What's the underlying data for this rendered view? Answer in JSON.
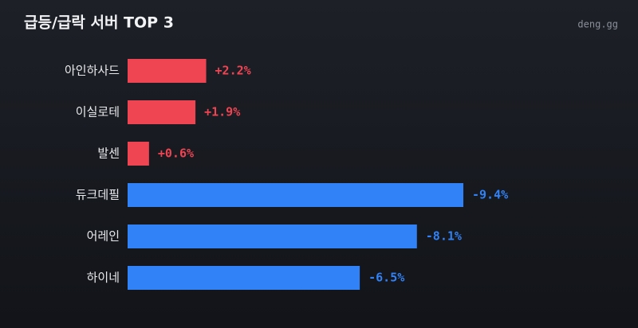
{
  "chart_data": {
    "type": "bar",
    "orientation": "horizontal",
    "title": "급등/급락 서버 TOP 3",
    "source": "deng.gg",
    "categories": [
      "아인하사드",
      "이실로테",
      "발센",
      "듀크데필",
      "어레인",
      "하이네"
    ],
    "values": [
      2.2,
      1.9,
      0.6,
      -9.4,
      -8.1,
      -6.5
    ],
    "value_labels": [
      "+2.2%",
      "+1.9%",
      "+0.6%",
      "-9.4%",
      "-8.1%",
      "-6.5%"
    ],
    "colors": [
      "#ef4452",
      "#ef4452",
      "#ef4452",
      "#3182f6",
      "#3182f6",
      "#3182f6"
    ]
  }
}
